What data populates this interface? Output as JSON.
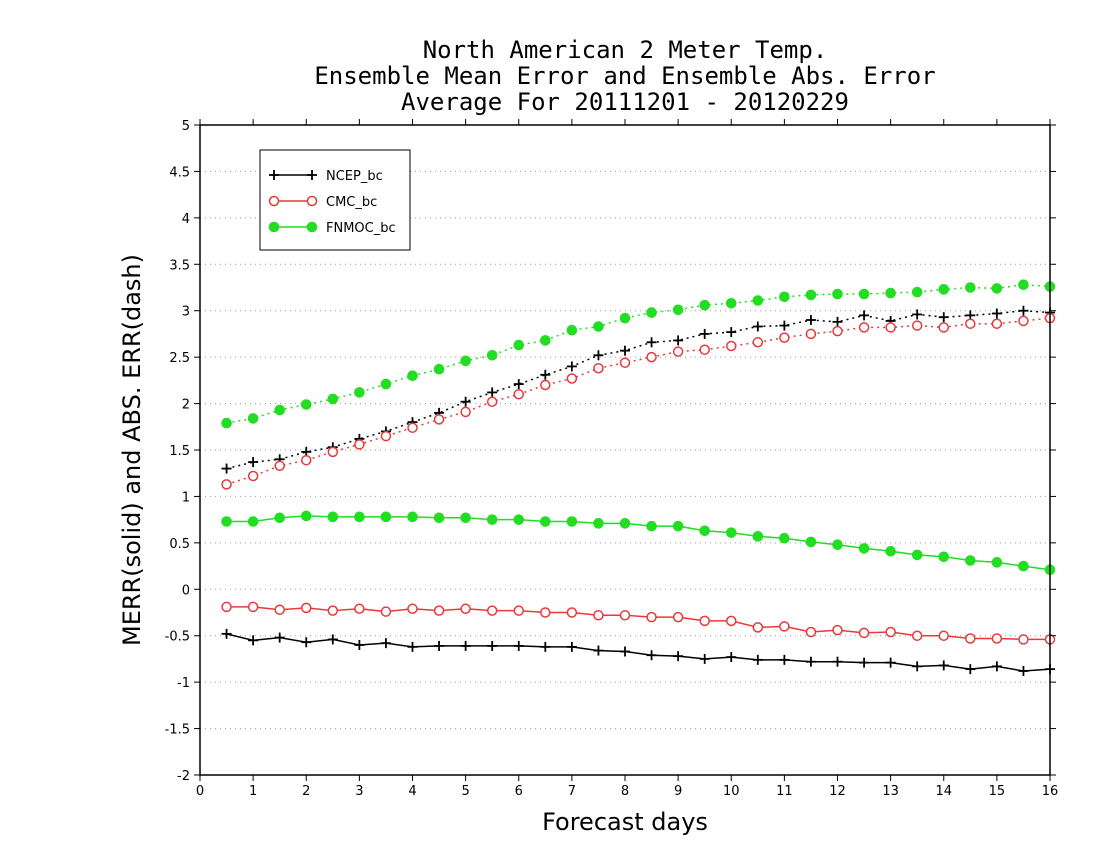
{
  "chart_data": {
    "type": "line",
    "title_lines": [
      "North American 2 Meter Temp.",
      "Ensemble Mean Error and Ensemble Abs. Error",
      "Average For 20111201 - 20120229"
    ],
    "xlabel": "Forecast days",
    "ylabel": "MERR(solid) and ABS. ERR(dash)",
    "xlim": [
      0,
      16
    ],
    "ylim": [
      -2,
      5
    ],
    "xticks": [
      "0",
      "1",
      "2",
      "3",
      "4",
      "5",
      "6",
      "7",
      "8",
      "9",
      "10",
      "11",
      "12",
      "13",
      "14",
      "15",
      "16"
    ],
    "yticks": [
      "-2",
      "-1.5",
      "-1",
      "-0.5",
      "0",
      "0.5",
      "1",
      "1.5",
      "2",
      "2.5",
      "3",
      "3.5",
      "4",
      "4.5",
      "5"
    ],
    "grid": "horizontal dotted",
    "legend_position": "top-left",
    "x": [
      0.5,
      1,
      1.5,
      2,
      2.5,
      3,
      3.5,
      4,
      4.5,
      5,
      5.5,
      6,
      6.5,
      7,
      7.5,
      8,
      8.5,
      9,
      9.5,
      10,
      10.5,
      11,
      11.5,
      12,
      12.5,
      13,
      13.5,
      14,
      14.5,
      15,
      15.5,
      16
    ],
    "series": [
      {
        "name": "NCEP_bc",
        "color": "#000000",
        "marker": "plus",
        "merr": [
          -0.48,
          -0.55,
          -0.52,
          -0.57,
          -0.54,
          -0.6,
          -0.58,
          -0.62,
          -0.61,
          -0.61,
          -0.61,
          -0.61,
          -0.62,
          -0.62,
          -0.66,
          -0.67,
          -0.71,
          -0.72,
          -0.75,
          -0.73,
          -0.76,
          -0.76,
          -0.78,
          -0.78,
          -0.79,
          -0.79,
          -0.83,
          -0.82,
          -0.86,
          -0.83,
          -0.88,
          -0.86
        ],
        "abserr": [
          1.3,
          1.37,
          1.4,
          1.48,
          1.53,
          1.62,
          1.7,
          1.8,
          1.9,
          2.02,
          2.12,
          2.21,
          2.31,
          2.4,
          2.52,
          2.57,
          2.66,
          2.68,
          2.75,
          2.77,
          2.83,
          2.84,
          2.9,
          2.88,
          2.95,
          2.89,
          2.96,
          2.93,
          2.95,
          2.97,
          3.0,
          2.98
        ]
      },
      {
        "name": "CMC_bc",
        "color": "#e8393a",
        "marker": "open-circle",
        "merr": [
          -0.19,
          -0.19,
          -0.22,
          -0.2,
          -0.23,
          -0.21,
          -0.24,
          -0.21,
          -0.23,
          -0.21,
          -0.23,
          -0.23,
          -0.25,
          -0.25,
          -0.28,
          -0.28,
          -0.3,
          -0.3,
          -0.34,
          -0.34,
          -0.41,
          -0.4,
          -0.46,
          -0.44,
          -0.47,
          -0.46,
          -0.5,
          -0.5,
          -0.53,
          -0.53,
          -0.54,
          -0.54
        ],
        "abserr": [
          1.13,
          1.22,
          1.33,
          1.39,
          1.48,
          1.56,
          1.65,
          1.74,
          1.83,
          1.91,
          2.02,
          2.1,
          2.2,
          2.27,
          2.38,
          2.44,
          2.5,
          2.56,
          2.58,
          2.62,
          2.66,
          2.71,
          2.75,
          2.78,
          2.82,
          2.82,
          2.84,
          2.82,
          2.86,
          2.86,
          2.89,
          2.92
        ]
      },
      {
        "name": "FNMOC_bc",
        "color": "#22dd22",
        "marker": "filled-circle",
        "merr": [
          0.73,
          0.73,
          0.77,
          0.79,
          0.78,
          0.78,
          0.78,
          0.78,
          0.77,
          0.77,
          0.75,
          0.75,
          0.73,
          0.73,
          0.71,
          0.71,
          0.68,
          0.68,
          0.63,
          0.61,
          0.57,
          0.55,
          0.51,
          0.48,
          0.44,
          0.41,
          0.37,
          0.35,
          0.31,
          0.29,
          0.25,
          0.21
        ],
        "abserr": [
          1.79,
          1.84,
          1.93,
          1.99,
          2.05,
          2.12,
          2.21,
          2.3,
          2.37,
          2.46,
          2.52,
          2.63,
          2.68,
          2.79,
          2.83,
          2.92,
          2.98,
          3.01,
          3.06,
          3.08,
          3.11,
          3.15,
          3.17,
          3.18,
          3.18,
          3.19,
          3.2,
          3.23,
          3.25,
          3.24,
          3.28,
          3.26
        ]
      }
    ]
  }
}
